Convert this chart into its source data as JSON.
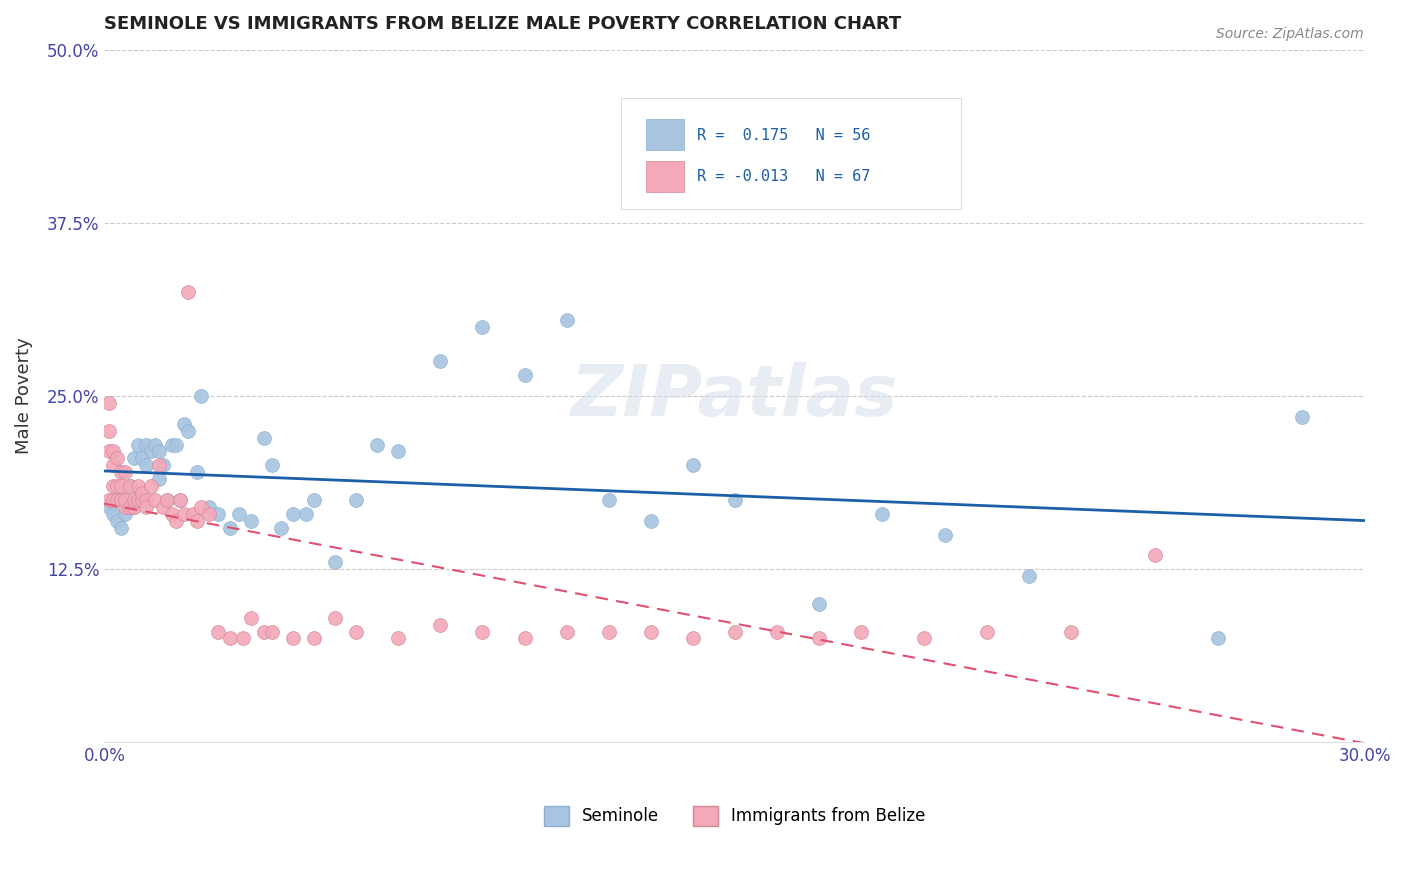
{
  "title": "SEMINOLE VS IMMIGRANTS FROM BELIZE MALE POVERTY CORRELATION CHART",
  "source": "Source: ZipAtlas.com",
  "xlabel": "",
  "ylabel": "Male Poverty",
  "xlim": [
    0.0,
    0.3
  ],
  "ylim": [
    0.0,
    0.5
  ],
  "xticks": [
    0.0,
    0.05,
    0.1,
    0.15,
    0.2,
    0.25,
    0.3
  ],
  "xticklabels": [
    "0.0%",
    "",
    "",
    "",
    "",
    "",
    "30.0%"
  ],
  "yticks": [
    0.0,
    0.125,
    0.25,
    0.375,
    0.5
  ],
  "yticklabels": [
    "",
    "12.5%",
    "25.0%",
    "37.5%",
    "50.0%"
  ],
  "seminole_color": "#a8c4e0",
  "belize_color": "#f4a8b8",
  "trendline_seminole_color": "#1a5fa8",
  "trendline_belize_color": "#e05070",
  "legend_seminole_label": "Seminole",
  "legend_belize_label": "Immigrants from Belize",
  "R_seminole": 0.175,
  "N_seminole": 56,
  "R_belize": -0.013,
  "N_belize": 67,
  "watermark": "ZIPatlas",
  "seminole_x": [
    0.001,
    0.002,
    0.003,
    0.003,
    0.004,
    0.005,
    0.005,
    0.006,
    0.007,
    0.007,
    0.008,
    0.009,
    0.01,
    0.01,
    0.011,
    0.012,
    0.013,
    0.013,
    0.014,
    0.015,
    0.016,
    0.017,
    0.018,
    0.019,
    0.02,
    0.022,
    0.023,
    0.025,
    0.027,
    0.03,
    0.032,
    0.035,
    0.038,
    0.04,
    0.042,
    0.045,
    0.048,
    0.05,
    0.055,
    0.06,
    0.065,
    0.07,
    0.08,
    0.09,
    0.1,
    0.11,
    0.12,
    0.13,
    0.14,
    0.15,
    0.17,
    0.185,
    0.2,
    0.22,
    0.265,
    0.285
  ],
  "seminole_y": [
    0.17,
    0.165,
    0.16,
    0.175,
    0.155,
    0.175,
    0.165,
    0.185,
    0.17,
    0.205,
    0.215,
    0.205,
    0.215,
    0.2,
    0.21,
    0.215,
    0.19,
    0.21,
    0.2,
    0.175,
    0.215,
    0.215,
    0.175,
    0.23,
    0.225,
    0.195,
    0.25,
    0.17,
    0.165,
    0.155,
    0.165,
    0.16,
    0.22,
    0.2,
    0.155,
    0.165,
    0.165,
    0.175,
    0.13,
    0.175,
    0.215,
    0.21,
    0.275,
    0.3,
    0.265,
    0.305,
    0.175,
    0.16,
    0.2,
    0.175,
    0.1,
    0.165,
    0.15,
    0.12,
    0.075,
    0.235
  ],
  "belize_x": [
    0.001,
    0.001,
    0.001,
    0.001,
    0.002,
    0.002,
    0.002,
    0.002,
    0.003,
    0.003,
    0.003,
    0.004,
    0.004,
    0.004,
    0.005,
    0.005,
    0.005,
    0.006,
    0.006,
    0.007,
    0.007,
    0.008,
    0.008,
    0.009,
    0.009,
    0.01,
    0.01,
    0.011,
    0.012,
    0.013,
    0.014,
    0.015,
    0.016,
    0.017,
    0.018,
    0.019,
    0.02,
    0.021,
    0.022,
    0.023,
    0.025,
    0.027,
    0.03,
    0.033,
    0.035,
    0.038,
    0.04,
    0.045,
    0.05,
    0.055,
    0.06,
    0.07,
    0.08,
    0.09,
    0.1,
    0.11,
    0.12,
    0.13,
    0.14,
    0.15,
    0.16,
    0.17,
    0.18,
    0.195,
    0.21,
    0.23,
    0.25
  ],
  "belize_y": [
    0.175,
    0.21,
    0.225,
    0.245,
    0.175,
    0.185,
    0.2,
    0.21,
    0.175,
    0.185,
    0.205,
    0.175,
    0.185,
    0.195,
    0.17,
    0.175,
    0.195,
    0.17,
    0.185,
    0.17,
    0.175,
    0.175,
    0.185,
    0.175,
    0.18,
    0.175,
    0.17,
    0.185,
    0.175,
    0.2,
    0.17,
    0.175,
    0.165,
    0.16,
    0.175,
    0.165,
    0.325,
    0.165,
    0.16,
    0.17,
    0.165,
    0.08,
    0.075,
    0.075,
    0.09,
    0.08,
    0.08,
    0.075,
    0.075,
    0.09,
    0.08,
    0.075,
    0.085,
    0.08,
    0.075,
    0.08,
    0.08,
    0.08,
    0.075,
    0.08,
    0.08,
    0.075,
    0.08,
    0.075,
    0.08,
    0.08,
    0.135
  ]
}
